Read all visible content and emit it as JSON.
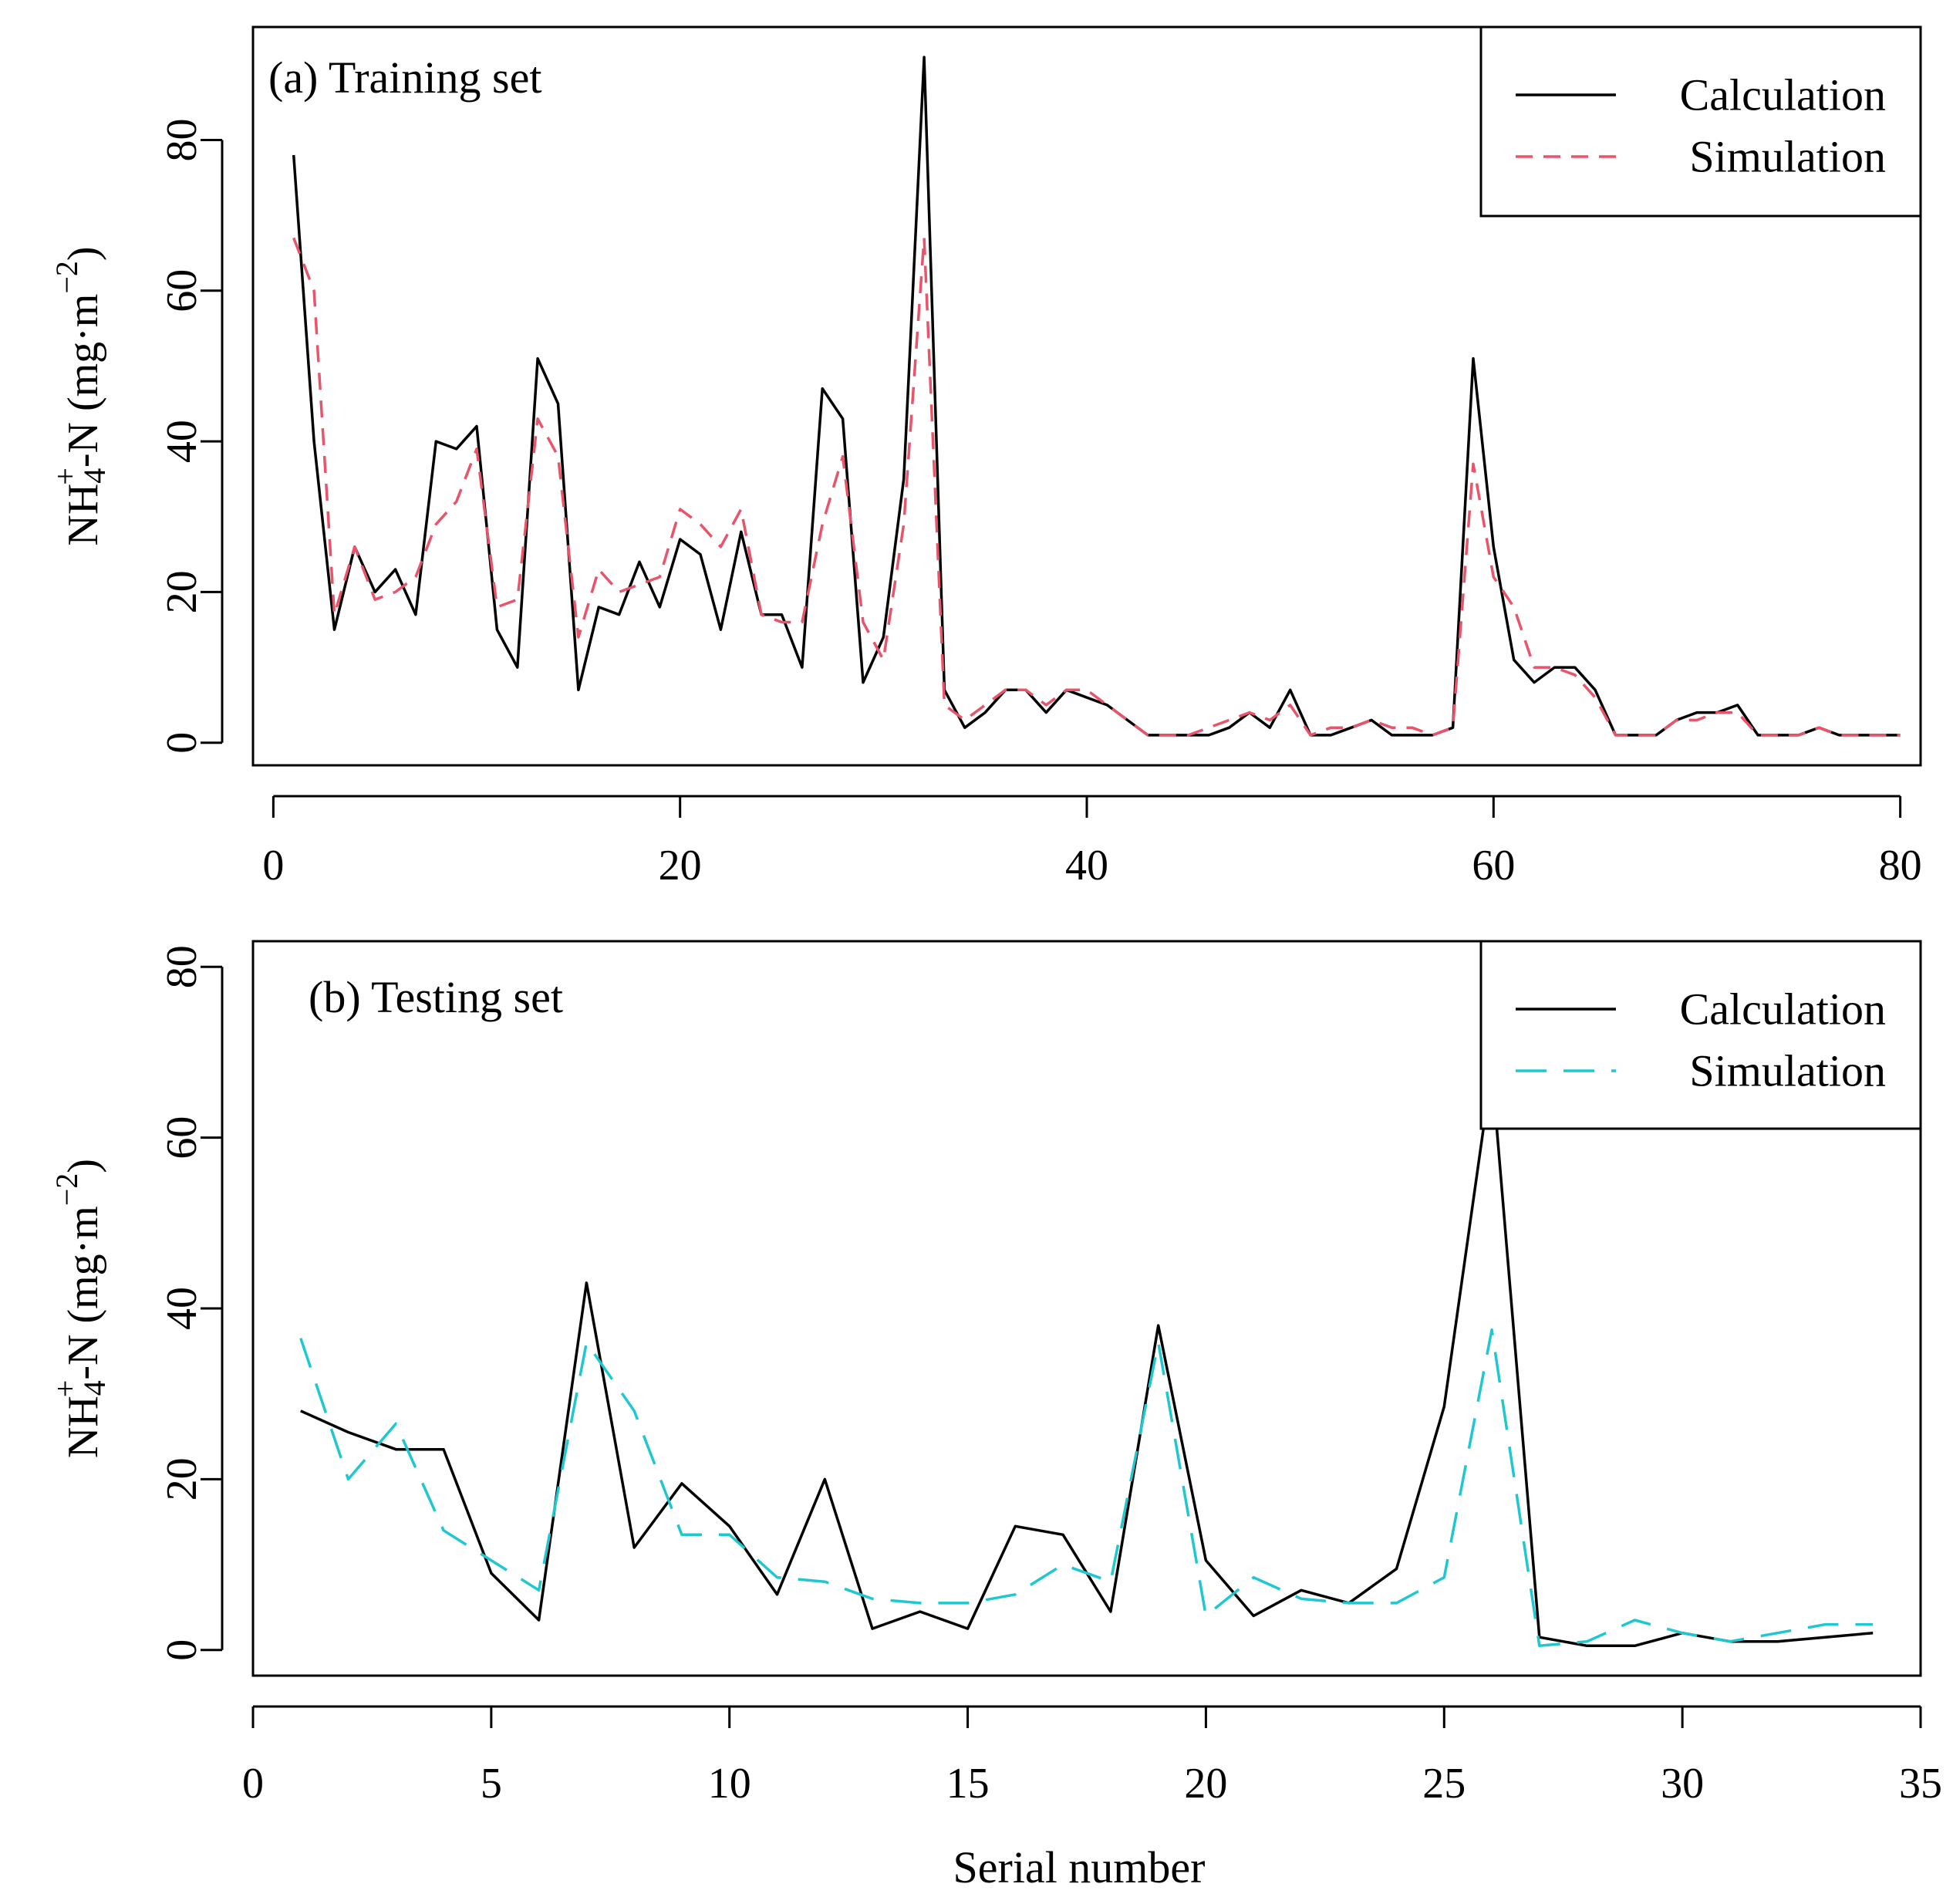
{
  "chart_data": [
    {
      "type": "line",
      "title": "(a) Training set",
      "ylabel": {
        "main": "NH",
        "sub": "4",
        "sup": "+",
        "rest": "-N (mg·m",
        "unit_sup": "−2",
        "close": ")"
      },
      "xlim": [
        -1,
        81
      ],
      "ylim": [
        -3,
        95
      ],
      "xticks": [
        0,
        20,
        40,
        60,
        80
      ],
      "yticks": [
        0,
        20,
        40,
        60,
        80
      ],
      "legend": {
        "position": "top-right"
      },
      "series": [
        {
          "name": "Calculation",
          "color": "#000000",
          "dash": "solid",
          "x": [
            1,
            2,
            3,
            4,
            5,
            6,
            7,
            8,
            9,
            10,
            11,
            12,
            13,
            14,
            15,
            16,
            17,
            18,
            19,
            20,
            21,
            22,
            23,
            24,
            25,
            26,
            27,
            28,
            29,
            30,
            31,
            32,
            33,
            34,
            35,
            36,
            37,
            38,
            39,
            40,
            41,
            42,
            43,
            44,
            45,
            46,
            47,
            48,
            49,
            50,
            51,
            52,
            53,
            54,
            55,
            56,
            57,
            58,
            59,
            60,
            61,
            62,
            63,
            64,
            65,
            66,
            67,
            68,
            69,
            70,
            71,
            72,
            73,
            74,
            75,
            76,
            77,
            78,
            79,
            80
          ],
          "values": [
            78,
            40,
            15,
            26,
            20,
            23,
            17,
            40,
            39,
            42,
            15,
            10,
            51,
            45,
            7,
            18,
            17,
            24,
            18,
            27,
            25,
            15,
            28,
            17,
            17,
            10,
            47,
            43,
            8,
            14,
            35,
            91,
            7,
            2,
            4,
            7,
            7,
            4,
            7,
            6,
            5,
            3,
            1,
            1,
            1,
            1,
            2,
            4,
            2,
            7,
            1,
            1,
            2,
            3,
            1,
            1,
            1,
            2,
            51,
            26,
            11,
            8,
            10,
            10,
            7,
            1,
            1,
            1,
            3,
            4,
            4,
            5,
            1,
            1,
            1,
            2,
            1,
            1,
            1,
            1
          ]
        },
        {
          "name": "Simulation",
          "color": "#e8546a",
          "dash": "short",
          "x": [
            1,
            2,
            3,
            4,
            5,
            6,
            7,
            8,
            9,
            10,
            11,
            12,
            13,
            14,
            15,
            16,
            17,
            18,
            19,
            20,
            21,
            22,
            23,
            24,
            25,
            26,
            27,
            28,
            29,
            30,
            31,
            32,
            33,
            34,
            35,
            36,
            37,
            38,
            39,
            40,
            41,
            42,
            43,
            44,
            45,
            46,
            47,
            48,
            49,
            50,
            51,
            52,
            53,
            54,
            55,
            56,
            57,
            58,
            59,
            60,
            61,
            62,
            63,
            64,
            65,
            66,
            67,
            68,
            69,
            70,
            71,
            72,
            73,
            74,
            75,
            76,
            77,
            78,
            79,
            80
          ],
          "values": [
            67,
            60,
            17,
            26,
            19,
            20,
            22,
            29,
            32,
            39,
            18,
            19,
            43,
            38,
            14,
            23,
            20,
            21,
            22,
            31,
            29,
            26,
            31,
            17,
            16,
            16,
            29,
            38,
            16,
            11,
            29,
            67,
            5,
            3,
            5,
            7,
            7,
            5,
            7,
            7,
            5,
            3,
            1,
            1,
            1,
            2,
            3,
            4,
            3,
            5,
            1,
            2,
            2,
            3,
            2,
            2,
            1,
            2,
            37,
            22,
            18,
            10,
            10,
            9,
            6,
            1,
            1,
            1,
            3,
            3,
            4,
            4,
            1,
            1,
            1,
            2,
            1,
            1,
            1,
            1
          ]
        }
      ]
    },
    {
      "type": "line",
      "title": "(b) Testing set",
      "xlabel": "Serial number",
      "ylabel": {
        "main": "NH",
        "sub": "4",
        "sup": "+",
        "rest": "-N (mg·m",
        "unit_sup": "−2",
        "close": ")"
      },
      "xlim": [
        0,
        35
      ],
      "ylim": [
        -3,
        83
      ],
      "xticks": [
        0,
        5,
        10,
        15,
        20,
        25,
        30,
        35
      ],
      "yticks": [
        0,
        20,
        40,
        60,
        80
      ],
      "legend": {
        "position": "top-right"
      },
      "series": [
        {
          "name": "Calculation",
          "color": "#000000",
          "dash": "solid",
          "x": [
            1,
            2,
            3,
            4,
            5,
            6,
            7,
            8,
            9,
            10,
            11,
            12,
            13,
            14,
            15,
            16,
            17,
            18,
            19,
            20,
            21,
            22,
            23,
            24,
            25,
            26,
            27,
            28,
            29,
            30,
            31,
            32,
            33,
            34
          ],
          "values": [
            28,
            25.5,
            23.5,
            23.5,
            9,
            3.5,
            43,
            12,
            19.5,
            14.5,
            6.5,
            20,
            2.5,
            4.5,
            2.5,
            14.5,
            13.5,
            4.5,
            38,
            10.5,
            4,
            7,
            5.5,
            9.5,
            28.5,
            68,
            1.5,
            0.5,
            0.5,
            2,
            1,
            1,
            1.5,
            2
          ]
        },
        {
          "name": "Simulation",
          "color": "#1fc8d0",
          "dash": "long",
          "x": [
            1,
            2,
            3,
            4,
            5,
            6,
            7,
            8,
            9,
            10,
            11,
            12,
            13,
            14,
            15,
            16,
            17,
            18,
            19,
            20,
            21,
            22,
            23,
            24,
            25,
            26,
            27,
            28,
            29,
            30,
            31,
            32,
            33,
            34
          ],
          "values": [
            36.5,
            20,
            26.5,
            14,
            10.5,
            7,
            36,
            28,
            13.5,
            13.5,
            8.5,
            8,
            6,
            5.5,
            5.5,
            6.5,
            10,
            8,
            36,
            4,
            8.5,
            6,
            5.5,
            5.5,
            8.5,
            37.5,
            0.5,
            1,
            3.5,
            2,
            1,
            2,
            3,
            3
          ]
        }
      ]
    }
  ]
}
